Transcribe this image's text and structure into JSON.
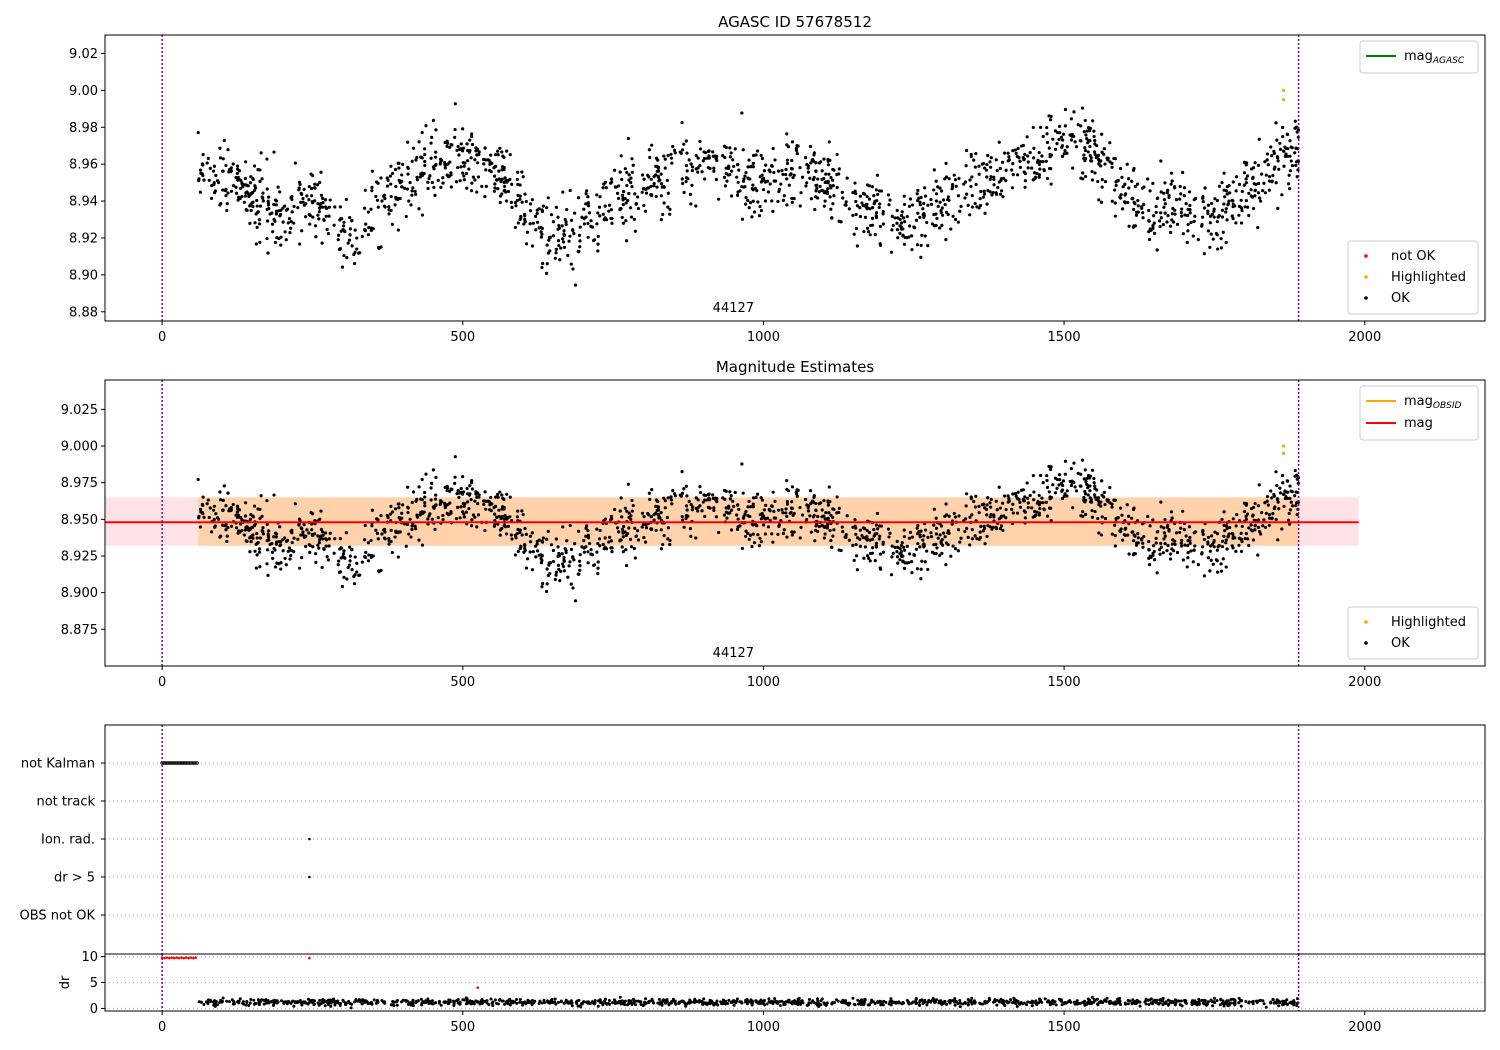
{
  "chart_data": [
    {
      "type": "scatter",
      "title": "AGASC ID 57678512",
      "annotation": "44127",
      "xlim": [
        -95,
        2200
      ],
      "ylim": [
        8.875,
        9.03
      ],
      "xticks": [
        0,
        500,
        1000,
        1500,
        2000
      ],
      "yticks": [
        8.88,
        8.9,
        8.92,
        8.94,
        8.96,
        8.98,
        9.0,
        9.02
      ],
      "ytick_decimals": 2,
      "vlines": [
        0,
        1890
      ],
      "vline_color": "#800080",
      "legend_top": [
        {
          "label": "mag",
          "sub": "AGASC",
          "color": "#008000",
          "kind": "line"
        }
      ],
      "legend_bottom": [
        {
          "label": "not OK",
          "color": "#ff0000",
          "kind": "dot"
        },
        {
          "label": "Highlighted",
          "color": "#ffa500",
          "kind": "dot"
        },
        {
          "label": "OK",
          "color": "#000000",
          "kind": "dot"
        }
      ],
      "series": [
        {
          "name": "OK",
          "color": "#000000",
          "x_start": 60,
          "x_end": 1890,
          "n": 1800,
          "trend": [
            [
              60,
              8.958
            ],
            [
              100,
              8.955
            ],
            [
              150,
              8.94
            ],
            [
              200,
              8.93
            ],
            [
              240,
              8.942
            ],
            [
              280,
              8.93
            ],
            [
              320,
              8.923
            ],
            [
              360,
              8.938
            ],
            [
              420,
              8.955
            ],
            [
              470,
              8.962
            ],
            [
              510,
              8.965
            ],
            [
              560,
              8.955
            ],
            [
              600,
              8.94
            ],
            [
              640,
              8.922
            ],
            [
              690,
              8.925
            ],
            [
              740,
              8.938
            ],
            [
              800,
              8.948
            ],
            [
              860,
              8.96
            ],
            [
              920,
              8.958
            ],
            [
              980,
              8.95
            ],
            [
              1050,
              8.955
            ],
            [
              1110,
              8.95
            ],
            [
              1170,
              8.935
            ],
            [
              1220,
              8.928
            ],
            [
              1260,
              8.932
            ],
            [
              1320,
              8.945
            ],
            [
              1370,
              8.95
            ],
            [
              1420,
              8.965
            ],
            [
              1460,
              8.96
            ],
            [
              1510,
              8.975
            ],
            [
              1550,
              8.965
            ],
            [
              1600,
              8.945
            ],
            [
              1650,
              8.935
            ],
            [
              1700,
              8.935
            ],
            [
              1750,
              8.932
            ],
            [
              1800,
              8.945
            ],
            [
              1850,
              8.962
            ],
            [
              1890,
              8.968
            ]
          ],
          "spread": 0.0095,
          "seed": 11
        },
        {
          "name": "Highlighted",
          "color": "#ffa500",
          "points": [
            [
              1865,
              9.0
            ],
            [
              1865,
              8.995
            ]
          ]
        }
      ]
    },
    {
      "type": "scatter",
      "title": "Magnitude Estimates",
      "annotation": "44127",
      "xlim": [
        -95,
        2200
      ],
      "ylim": [
        8.85,
        9.045
      ],
      "xticks": [
        0,
        500,
        1000,
        1500,
        2000
      ],
      "yticks": [
        8.875,
        8.9,
        8.925,
        8.95,
        8.975,
        9.0,
        9.025
      ],
      "ytick_decimals": 3,
      "vlines": [
        0,
        1890
      ],
      "vline_color": "#800080",
      "hline": {
        "y": 8.948,
        "x0": -95,
        "x1": 1990,
        "color": "#ff0000"
      },
      "bands": [
        {
          "x0": -95,
          "x1": 1990,
          "y0": 8.932,
          "y1": 8.965,
          "color": "#ffb6c1",
          "opacity": 0.4
        },
        {
          "x0": 60,
          "x1": 1890,
          "y0": 8.932,
          "y1": 8.965,
          "color": "#ffa500",
          "opacity": 0.25
        }
      ],
      "legend_top": [
        {
          "label": "mag",
          "sub": "OBSID",
          "color": "#ffa500",
          "kind": "line"
        },
        {
          "label": "mag",
          "sub": "",
          "color": "#ff0000",
          "kind": "line"
        }
      ],
      "legend_bottom": [
        {
          "label": "Highlighted",
          "color": "#ffa500",
          "kind": "dot"
        },
        {
          "label": "OK",
          "color": "#000000",
          "kind": "dot"
        }
      ],
      "series": [
        {
          "name": "OK",
          "color": "#000000",
          "x_start": 60,
          "x_end": 1890,
          "n": 1800,
          "trend": [
            [
              60,
              8.958
            ],
            [
              100,
              8.955
            ],
            [
              150,
              8.94
            ],
            [
              200,
              8.93
            ],
            [
              240,
              8.942
            ],
            [
              280,
              8.93
            ],
            [
              320,
              8.923
            ],
            [
              360,
              8.938
            ],
            [
              420,
              8.955
            ],
            [
              470,
              8.962
            ],
            [
              510,
              8.965
            ],
            [
              560,
              8.955
            ],
            [
              600,
              8.94
            ],
            [
              640,
              8.922
            ],
            [
              690,
              8.925
            ],
            [
              740,
              8.938
            ],
            [
              800,
              8.948
            ],
            [
              860,
              8.96
            ],
            [
              920,
              8.958
            ],
            [
              980,
              8.95
            ],
            [
              1050,
              8.955
            ],
            [
              1110,
              8.95
            ],
            [
              1170,
              8.935
            ],
            [
              1220,
              8.928
            ],
            [
              1260,
              8.932
            ],
            [
              1320,
              8.945
            ],
            [
              1370,
              8.95
            ],
            [
              1420,
              8.965
            ],
            [
              1460,
              8.96
            ],
            [
              1510,
              8.975
            ],
            [
              1550,
              8.965
            ],
            [
              1600,
              8.945
            ],
            [
              1650,
              8.935
            ],
            [
              1700,
              8.935
            ],
            [
              1750,
              8.932
            ],
            [
              1800,
              8.945
            ],
            [
              1850,
              8.962
            ],
            [
              1890,
              8.968
            ]
          ],
          "spread": 0.0095,
          "seed": 11
        },
        {
          "name": "Highlighted",
          "color": "#ffa500",
          "points": [
            [
              1865,
              9.0
            ],
            [
              1865,
              8.995
            ]
          ]
        }
      ]
    },
    {
      "type": "scatter",
      "categories": [
        "not Kalman",
        "not track",
        "Ion. rad.",
        "dr > 5",
        "OBS not OK"
      ],
      "xlim": [
        -95,
        2200
      ],
      "vlines": [
        0,
        1890
      ],
      "vline_color": "#800080",
      "flags": [
        {
          "category": "not Kalman",
          "x_start": 0,
          "x_end": 58,
          "n": 24,
          "color": "#000000"
        },
        {
          "category": "Ion. rad.",
          "points": [
            245
          ],
          "color": "#000000"
        },
        {
          "category": "dr > 5",
          "points": [
            245
          ],
          "color": "#000000"
        }
      ]
    },
    {
      "type": "scatter",
      "ylabel": "dr",
      "xlim": [
        -95,
        2200
      ],
      "ylim": [
        -0.5,
        10.5
      ],
      "xticks": [
        0,
        500,
        1000,
        1500,
        2000
      ],
      "yticks": [
        0,
        5,
        10
      ],
      "vlines": [
        0,
        1890
      ],
      "vline_color": "#800080",
      "series": [
        {
          "name": "dr",
          "color": "#000000",
          "x_start": 60,
          "x_end": 1890,
          "n": 1200,
          "base": 1.2,
          "spread": 0.45,
          "seed": 5
        },
        {
          "name": "not OK",
          "color": "#ff0000",
          "points": [
            [
              0,
              9.8
            ],
            [
              4,
              9.7
            ],
            [
              8,
              9.8
            ],
            [
              12,
              9.7
            ],
            [
              16,
              9.8
            ],
            [
              20,
              9.7
            ],
            [
              24,
              9.8
            ],
            [
              28,
              9.7
            ],
            [
              32,
              9.8
            ],
            [
              36,
              9.7
            ],
            [
              40,
              9.8
            ],
            [
              44,
              9.7
            ],
            [
              48,
              9.8
            ],
            [
              52,
              9.7
            ],
            [
              56,
              9.8
            ],
            [
              245,
              9.7
            ],
            [
              525,
              4.0
            ]
          ]
        }
      ]
    }
  ]
}
